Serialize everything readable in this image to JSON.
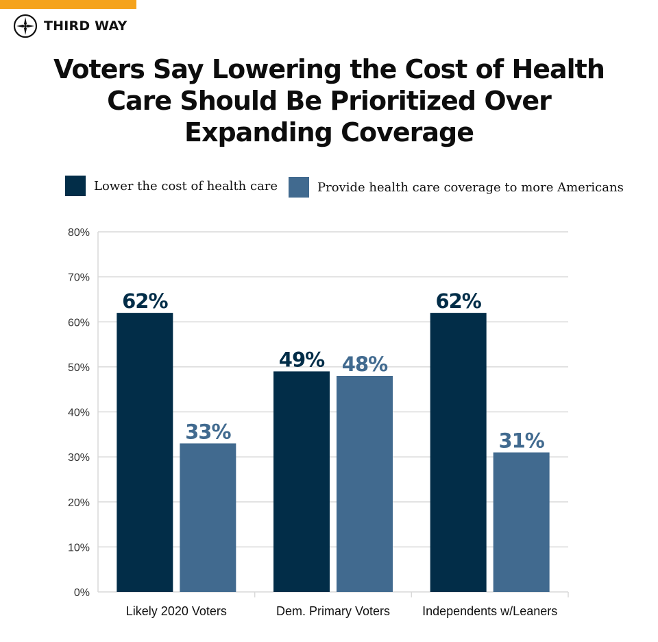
{
  "brand": {
    "name": "THIRD WAY",
    "logo_icon": "compass-star-icon",
    "accent_color": "#f5a31c"
  },
  "colors": {
    "lower_cost": "#022d48",
    "coverage": "#416a8f",
    "grid": "#d9d9d9",
    "axis_text": "#333333"
  },
  "chart_data": {
    "type": "bar",
    "title": "Voters Say Lowering the Cost of Health Care Should Be Prioritized Over Expanding Coverage",
    "title_lines": [
      "Voters Say Lowering the Cost of Health",
      "Care Should Be Prioritized Over",
      "Expanding Coverage"
    ],
    "categories": [
      "Likely 2020 Voters",
      "Dem. Primary Voters",
      "Independents w/Leaners"
    ],
    "series": [
      {
        "name": "Lower the cost of health care",
        "values": [
          62,
          49,
          62
        ]
      },
      {
        "name": "Provide health care coverage to more Americans",
        "values": [
          33,
          48,
          31
        ]
      }
    ],
    "value_labels": [
      [
        "62%",
        "49%",
        "62%"
      ],
      [
        "33%",
        "48%",
        "31%"
      ]
    ],
    "y_ticks": [
      "0%",
      "10%",
      "20%",
      "30%",
      "40%",
      "50%",
      "60%",
      "70%",
      "80%"
    ],
    "ylim": [
      0,
      80
    ],
    "xlabel": "",
    "ylabel": "",
    "grid": true,
    "legend_position": "top"
  }
}
